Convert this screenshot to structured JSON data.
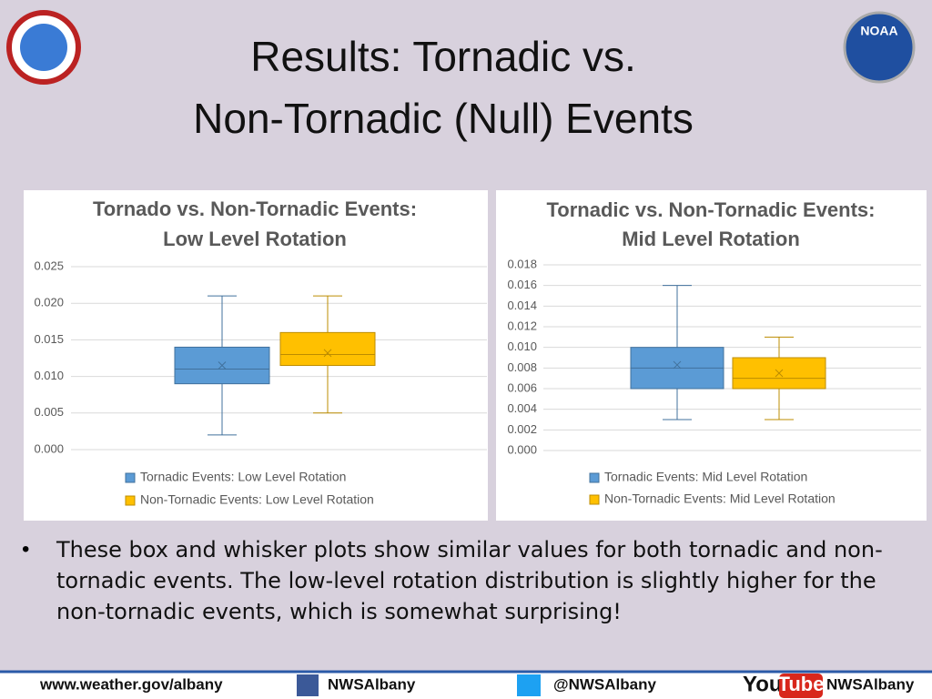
{
  "slide": {
    "title_lines": [
      "Results: Tornadic vs.",
      "Non-Tornadic (Null) Events"
    ],
    "bullet": "These box and whisker plots show similar values for both tornadic and non-tornadic events.  The low-level rotation distribution is slightly higher for the non-tornadic events, which is somewhat surprising!",
    "logo_right": "NOAA",
    "footer": {
      "website": "www.weather.gov/albany",
      "facebook": "NWSAlbany",
      "twitter": "@NWSAlbany",
      "youtube_you": "You",
      "youtube_tube": "Tube",
      "youtube": "NWSAlbany"
    }
  },
  "chart_data": [
    {
      "type": "box",
      "title_lines": [
        "Tornado vs. Non-Tornadic Events:",
        "Low Level Rotation"
      ],
      "ylim": [
        0,
        0.025
      ],
      "yticks": [
        {
          "value": 0,
          "label": "0.000"
        },
        0.005,
        {
          "value": 0.01,
          "label": "0.010"
        },
        0.015,
        {
          "value": 0.02,
          "label": "0.020"
        },
        0.025
      ],
      "grid": true,
      "series": [
        {
          "name": "Tornadic Events: Low Level Rotation",
          "color": "#5b9bd5",
          "min": 0.002,
          "q1": 0.009,
          "median": 0.011,
          "q3": 0.014,
          "max": 0.021,
          "mean": 0.0115
        },
        {
          "name": "Non-Tornadic Events: Low Level Rotation",
          "color": "#ffc000",
          "min": 0.005,
          "q1": 0.0115,
          "median": 0.013,
          "q3": 0.016,
          "max": 0.021,
          "mean": 0.0132
        }
      ]
    },
    {
      "type": "box",
      "title_lines": [
        "Tornadic vs. Non-Tornadic Events:",
        "Mid Level Rotation"
      ],
      "ylim": [
        0,
        0.018
      ],
      "yticks": [
        {
          "value": 0,
          "label": "0.000"
        },
        0.002,
        0.004,
        0.006,
        0.008,
        {
          "value": 0.01,
          "label": "0.010"
        },
        0.012,
        0.014,
        0.016,
        0.018
      ],
      "grid": true,
      "series": [
        {
          "name": "Tornadic Events: Mid Level Rotation",
          "color": "#5b9bd5",
          "min": 0.003,
          "q1": 0.006,
          "median": 0.008,
          "q3": 0.01,
          "max": 0.016,
          "mean": 0.0083
        },
        {
          "name": "Non-Tornadic Events: Mid Level Rotation",
          "color": "#ffc000",
          "min": 0.003,
          "q1": 0.006,
          "median": 0.007,
          "q3": 0.009,
          "max": 0.011,
          "mean": 0.0075
        }
      ]
    }
  ]
}
